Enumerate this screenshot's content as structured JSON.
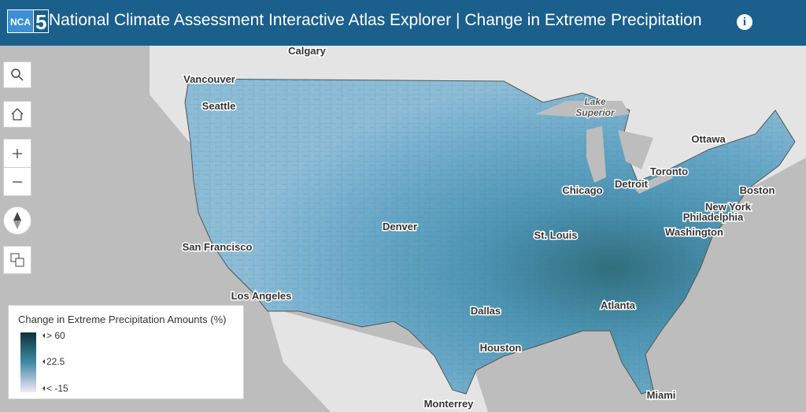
{
  "header": {
    "logo": {
      "text": "NCA",
      "number": "5"
    },
    "title": "National Climate Assessment Interactive Atlas Explorer | Change in Extreme Precipitation"
  },
  "map": {
    "labels": [
      "Calgary",
      "Vancouver",
      "Seattle",
      "Lake",
      "Superior",
      "Ottawa",
      "Toronto",
      "Detroit",
      "Chicago",
      "Boston",
      "New York",
      "Philadelphia",
      "Washington",
      "Denver",
      "St. Louis",
      "San Francisco",
      "Los Angeles",
      "Dallas",
      "Atlanta",
      "Houston",
      "Miami",
      "Monterrey"
    ]
  },
  "legend": {
    "title": "Change in Extreme Precipitation Amounts (%)",
    "labels": [
      "> 60",
      "22.5",
      "< -15"
    ]
  }
}
